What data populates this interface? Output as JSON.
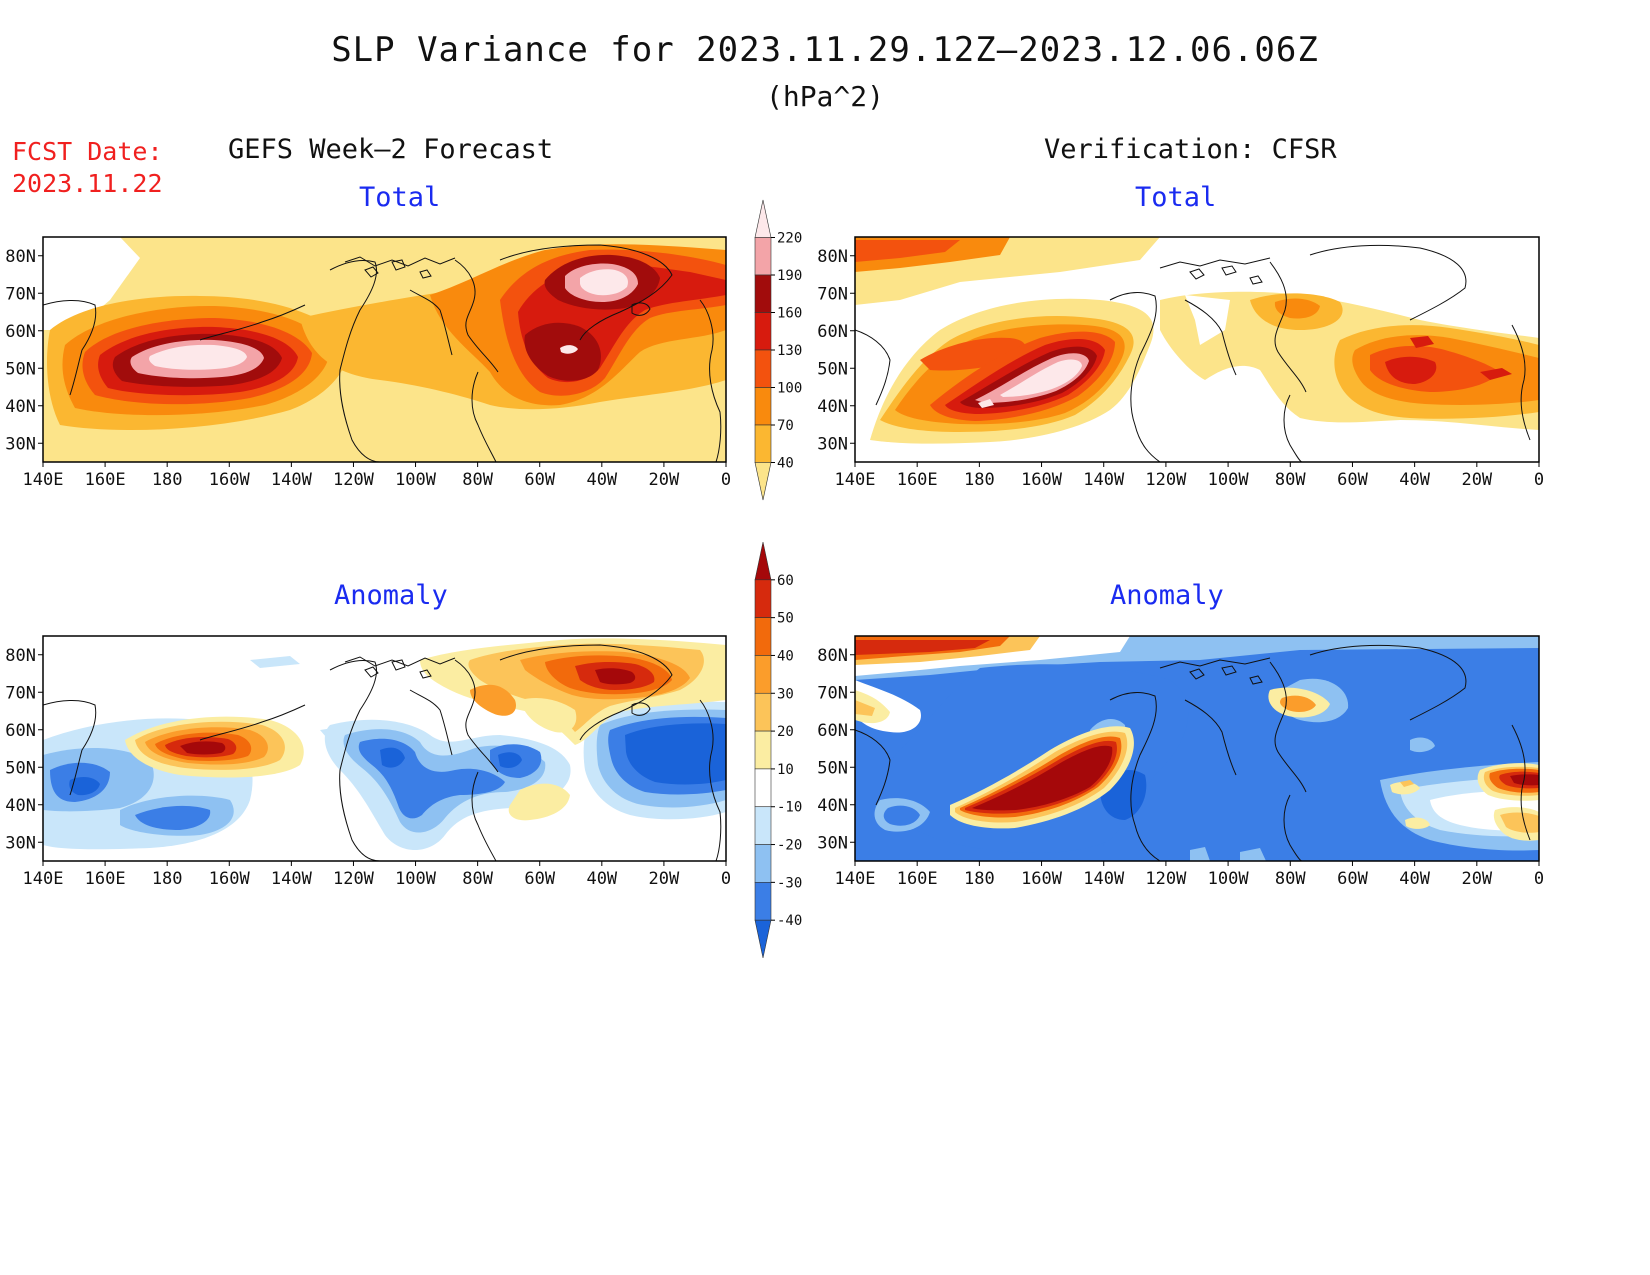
{
  "title": "SLP Variance for 2023.11.29.12Z–2023.12.06.06Z",
  "units": "(hPa^2)",
  "fcst_label": "FCST Date:",
  "fcst_date": "2023.11.22",
  "left_column_title": "GEFS Week–2 Forecast",
  "right_column_title": "Verification: CFSR",
  "panels": [
    {
      "id": "gefs-total",
      "subtitle": "Total"
    },
    {
      "id": "cfsr-total",
      "subtitle": "Total"
    },
    {
      "id": "gefs-anomaly",
      "subtitle": "Anomaly"
    },
    {
      "id": "cfsr-anomaly",
      "subtitle": "Anomaly"
    }
  ],
  "lon_labels": [
    "140E",
    "160E",
    "180",
    "160W",
    "140W",
    "120W",
    "100W",
    "80W",
    "60W",
    "40W",
    "20W",
    "0"
  ],
  "lat_labels": [
    "80N",
    "70N",
    "60N",
    "50N",
    "40N",
    "30N"
  ],
  "total_colorbar": {
    "levels": [
      "40",
      "70",
      "100",
      "130",
      "160",
      "190",
      "220"
    ],
    "colors": [
      "#fce48a",
      "#fbb731",
      "#f98a0d",
      "#f3520e",
      "#d71b0e",
      "#a10c0c",
      "#f3a4a8",
      "#fde8ea"
    ]
  },
  "anomaly_colorbar": {
    "levels": [
      "-40",
      "-30",
      "-20",
      "-10",
      "10",
      "20",
      "30",
      "40",
      "50",
      "60"
    ],
    "colors": [
      "#1a63d9",
      "#3b7ee6",
      "#8ec1f2",
      "#c9e6fa",
      "#ffffff",
      "#fbeda2",
      "#fcc459",
      "#fb9d2b",
      "#f26a0c",
      "#d62a0d",
      "#a5080a"
    ]
  }
}
